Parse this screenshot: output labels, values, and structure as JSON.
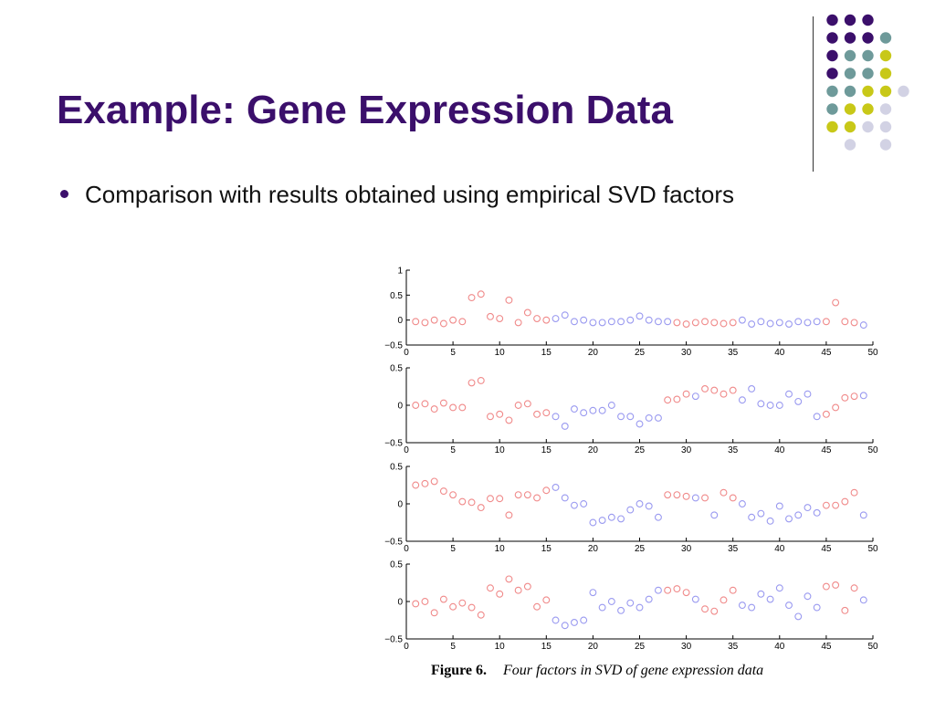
{
  "slide": {
    "title": "Example: Gene Expression Data",
    "bullet": "Comparison with results obtained using empirical SVD factors"
  },
  "caption": {
    "label": "Figure 6.",
    "text": "Four factors in SVD of gene expression data"
  },
  "colors": {
    "title": "#3b0f6b",
    "series_red": "#f08a8a",
    "series_blue": "#9a9af0",
    "deco_purple": "#3b0f6b",
    "deco_teal": "#6e9a9a",
    "deco_olive": "#c8c818",
    "deco_lavender": "#d2d2e4"
  },
  "decoration": {
    "dot_grid": [
      [
        "",
        "purple",
        "purple",
        "purple",
        ""
      ],
      [
        "",
        "purple",
        "purple",
        "purple",
        "teal"
      ],
      [
        "",
        "purple",
        "teal",
        "teal",
        "olive"
      ],
      [
        "",
        "purple",
        "teal",
        "teal",
        "olive"
      ],
      [
        "",
        "teal",
        "teal",
        "olive",
        "olive",
        "lavender"
      ],
      [
        "",
        "teal",
        "olive",
        "olive",
        "lavender"
      ],
      [
        "",
        "olive",
        "olive",
        "lavender",
        "lavender"
      ],
      [
        "",
        "",
        "lavender",
        "",
        "lavender"
      ]
    ]
  },
  "chart_data": [
    {
      "type": "scatter",
      "xlim": [
        0,
        50
      ],
      "ylim": [
        -0.5,
        1
      ],
      "yticks": [
        "1",
        "0.5",
        "0",
        "−0.5"
      ],
      "xticks": [
        "0",
        "5",
        "10",
        "15",
        "20",
        "25",
        "30",
        "35",
        "40",
        "45",
        "50"
      ],
      "series": [
        {
          "color": "red",
          "points": [
            [
              1,
              -0.03
            ],
            [
              2,
              -0.05
            ],
            [
              3,
              0.0
            ],
            [
              4,
              -0.07
            ],
            [
              5,
              0.0
            ],
            [
              6,
              -0.03
            ],
            [
              7,
              0.45
            ],
            [
              8,
              0.52
            ],
            [
              9,
              0.07
            ],
            [
              10,
              0.03
            ],
            [
              11,
              0.4
            ],
            [
              12,
              -0.05
            ],
            [
              13,
              0.15
            ],
            [
              14,
              0.03
            ],
            [
              15,
              0.0
            ],
            [
              29,
              -0.05
            ],
            [
              30,
              -0.08
            ],
            [
              31,
              -0.05
            ],
            [
              32,
              -0.03
            ],
            [
              33,
              -0.05
            ],
            [
              34,
              -0.07
            ],
            [
              35,
              -0.05
            ],
            [
              45,
              -0.03
            ],
            [
              46,
              0.35
            ],
            [
              47,
              -0.03
            ],
            [
              48,
              -0.05
            ]
          ]
        },
        {
          "color": "blue",
          "points": [
            [
              16,
              0.03
            ],
            [
              17,
              0.1
            ],
            [
              18,
              -0.03
            ],
            [
              19,
              0.0
            ],
            [
              20,
              -0.05
            ],
            [
              21,
              -0.05
            ],
            [
              22,
              -0.03
            ],
            [
              23,
              -0.03
            ],
            [
              24,
              0.0
            ],
            [
              25,
              0.08
            ],
            [
              26,
              0.0
            ],
            [
              27,
              -0.03
            ],
            [
              28,
              -0.03
            ],
            [
              36,
              0.0
            ],
            [
              37,
              -0.08
            ],
            [
              38,
              -0.03
            ],
            [
              39,
              -0.07
            ],
            [
              40,
              -0.05
            ],
            [
              41,
              -0.08
            ],
            [
              42,
              -0.03
            ],
            [
              43,
              -0.05
            ],
            [
              44,
              -0.03
            ],
            [
              49,
              -0.1
            ]
          ]
        }
      ]
    },
    {
      "type": "scatter",
      "xlim": [
        0,
        50
      ],
      "ylim": [
        -0.5,
        0.5
      ],
      "yticks": [
        "0.5",
        "0",
        "−0.5"
      ],
      "xticks": [
        "0",
        "5",
        "10",
        "15",
        "20",
        "25",
        "30",
        "35",
        "40",
        "45",
        "50"
      ],
      "series": [
        {
          "color": "red",
          "points": [
            [
              1,
              0.0
            ],
            [
              2,
              0.02
            ],
            [
              3,
              -0.05
            ],
            [
              4,
              0.03
            ],
            [
              5,
              -0.03
            ],
            [
              6,
              -0.03
            ],
            [
              7,
              0.3
            ],
            [
              8,
              0.33
            ],
            [
              9,
              -0.15
            ],
            [
              10,
              -0.12
            ],
            [
              11,
              -0.2
            ],
            [
              12,
              0.0
            ],
            [
              13,
              0.02
            ],
            [
              14,
              -0.12
            ],
            [
              15,
              -0.1
            ],
            [
              28,
              0.07
            ],
            [
              29,
              0.08
            ],
            [
              30,
              0.15
            ],
            [
              32,
              0.22
            ],
            [
              33,
              0.2
            ],
            [
              34,
              0.15
            ],
            [
              35,
              0.2
            ],
            [
              45,
              -0.12
            ],
            [
              46,
              -0.03
            ],
            [
              47,
              0.1
            ],
            [
              48,
              0.12
            ]
          ]
        },
        {
          "color": "blue",
          "points": [
            [
              16,
              -0.15
            ],
            [
              17,
              -0.28
            ],
            [
              18,
              -0.05
            ],
            [
              19,
              -0.1
            ],
            [
              20,
              -0.07
            ],
            [
              21,
              -0.07
            ],
            [
              22,
              0.0
            ],
            [
              23,
              -0.15
            ],
            [
              24,
              -0.15
            ],
            [
              25,
              -0.25
            ],
            [
              26,
              -0.17
            ],
            [
              27,
              -0.17
            ],
            [
              31,
              0.12
            ],
            [
              36,
              0.07
            ],
            [
              37,
              0.22
            ],
            [
              38,
              0.02
            ],
            [
              39,
              0.0
            ],
            [
              40,
              0.0
            ],
            [
              41,
              0.15
            ],
            [
              42,
              0.05
            ],
            [
              43,
              0.15
            ],
            [
              44,
              -0.15
            ],
            [
              49,
              0.13
            ]
          ]
        }
      ]
    },
    {
      "type": "scatter",
      "xlim": [
        0,
        50
      ],
      "ylim": [
        -0.5,
        0.5
      ],
      "yticks": [
        "0.5",
        "0",
        "−0.5"
      ],
      "xticks": [
        "0",
        "5",
        "10",
        "15",
        "20",
        "25",
        "30",
        "35",
        "40",
        "45",
        "50"
      ],
      "series": [
        {
          "color": "red",
          "points": [
            [
              1,
              0.25
            ],
            [
              2,
              0.27
            ],
            [
              3,
              0.3
            ],
            [
              4,
              0.17
            ],
            [
              5,
              0.12
            ],
            [
              6,
              0.03
            ],
            [
              7,
              0.02
            ],
            [
              8,
              -0.05
            ],
            [
              9,
              0.07
            ],
            [
              10,
              0.07
            ],
            [
              11,
              -0.15
            ],
            [
              12,
              0.12
            ],
            [
              13,
              0.12
            ],
            [
              14,
              0.08
            ],
            [
              15,
              0.18
            ],
            [
              28,
              0.12
            ],
            [
              29,
              0.12
            ],
            [
              30,
              0.1
            ],
            [
              32,
              0.08
            ],
            [
              34,
              0.15
            ],
            [
              35,
              0.08
            ],
            [
              45,
              -0.02
            ],
            [
              46,
              -0.02
            ],
            [
              47,
              0.03
            ],
            [
              48,
              0.15
            ]
          ]
        },
        {
          "color": "blue",
          "points": [
            [
              16,
              0.22
            ],
            [
              17,
              0.08
            ],
            [
              18,
              -0.02
            ],
            [
              19,
              0.0
            ],
            [
              20,
              -0.25
            ],
            [
              21,
              -0.22
            ],
            [
              22,
              -0.18
            ],
            [
              23,
              -0.2
            ],
            [
              24,
              -0.08
            ],
            [
              25,
              0.0
            ],
            [
              26,
              -0.03
            ],
            [
              27,
              -0.18
            ],
            [
              31,
              0.08
            ],
            [
              33,
              -0.15
            ],
            [
              36,
              0.0
            ],
            [
              37,
              -0.18
            ],
            [
              38,
              -0.13
            ],
            [
              39,
              -0.23
            ],
            [
              40,
              -0.03
            ],
            [
              41,
              -0.2
            ],
            [
              42,
              -0.15
            ],
            [
              43,
              -0.05
            ],
            [
              44,
              -0.12
            ],
            [
              49,
              -0.15
            ]
          ]
        }
      ]
    },
    {
      "type": "scatter",
      "xlim": [
        0,
        50
      ],
      "ylim": [
        -0.5,
        0.5
      ],
      "yticks": [
        "0.5",
        "0",
        "−0.5"
      ],
      "xticks": [
        "0",
        "5",
        "10",
        "15",
        "20",
        "25",
        "30",
        "35",
        "40",
        "45",
        "50"
      ],
      "series": [
        {
          "color": "red",
          "points": [
            [
              1,
              -0.03
            ],
            [
              2,
              0.0
            ],
            [
              3,
              -0.15
            ],
            [
              4,
              0.03
            ],
            [
              5,
              -0.07
            ],
            [
              6,
              -0.02
            ],
            [
              7,
              -0.08
            ],
            [
              8,
              -0.18
            ],
            [
              9,
              0.18
            ],
            [
              10,
              0.1
            ],
            [
              11,
              0.3
            ],
            [
              12,
              0.15
            ],
            [
              13,
              0.2
            ],
            [
              14,
              -0.07
            ],
            [
              15,
              0.02
            ],
            [
              28,
              0.15
            ],
            [
              29,
              0.17
            ],
            [
              30,
              0.12
            ],
            [
              32,
              -0.1
            ],
            [
              33,
              -0.13
            ],
            [
              34,
              0.02
            ],
            [
              35,
              0.15
            ],
            [
              45,
              0.2
            ],
            [
              46,
              0.22
            ],
            [
              47,
              -0.12
            ],
            [
              48,
              0.18
            ]
          ]
        },
        {
          "color": "blue",
          "points": [
            [
              16,
              -0.25
            ],
            [
              17,
              -0.32
            ],
            [
              18,
              -0.28
            ],
            [
              19,
              -0.25
            ],
            [
              20,
              0.12
            ],
            [
              21,
              -0.08
            ],
            [
              22,
              0.0
            ],
            [
              23,
              -0.12
            ],
            [
              24,
              -0.02
            ],
            [
              25,
              -0.08
            ],
            [
              26,
              0.03
            ],
            [
              27,
              0.15
            ],
            [
              31,
              0.03
            ],
            [
              36,
              -0.05
            ],
            [
              37,
              -0.08
            ],
            [
              38,
              0.1
            ],
            [
              39,
              0.03
            ],
            [
              40,
              0.18
            ],
            [
              41,
              -0.05
            ],
            [
              42,
              -0.2
            ],
            [
              43,
              0.07
            ],
            [
              44,
              -0.08
            ],
            [
              49,
              0.02
            ]
          ]
        }
      ]
    }
  ]
}
